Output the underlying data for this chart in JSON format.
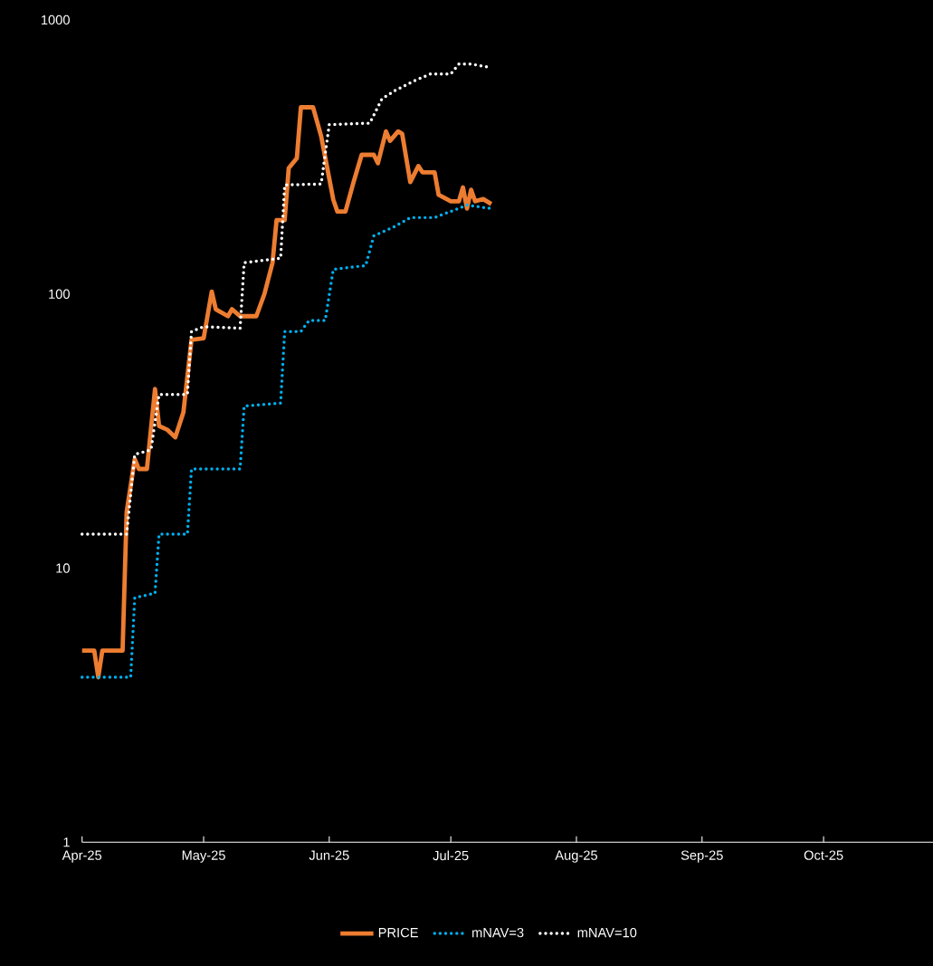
{
  "chart_data": {
    "type": "line",
    "log": "y",
    "legend": "bottom",
    "marker": "none",
    "xlim": [
      "2025-04-01",
      "2025-10-28"
    ],
    "ylim": [
      1,
      1000
    ],
    "yticks": [
      1,
      10,
      100,
      1000
    ],
    "xticks": [
      {
        "value": "2025-04-01",
        "label": "Apr-25"
      },
      {
        "value": "2025-05-01",
        "label": "May-25"
      },
      {
        "value": "2025-06-01",
        "label": "Jun-25"
      },
      {
        "value": "2025-07-01",
        "label": "Jul-25"
      },
      {
        "value": "2025-08-01",
        "label": "Aug-25"
      },
      {
        "value": "2025-09-01",
        "label": "Sep-25"
      },
      {
        "value": "2025-10-01",
        "label": "Oct-25"
      }
    ],
    "series": [
      {
        "name": "PRICE",
        "color": "#ed7d31",
        "line_style": "solid",
        "x": [
          "2025-04-01",
          "2025-04-04",
          "2025-04-05",
          "2025-04-06",
          "2025-04-11",
          "2025-04-12",
          "2025-04-14",
          "2025-04-15",
          "2025-04-17",
          "2025-04-19",
          "2025-04-20",
          "2025-04-22",
          "2025-04-24",
          "2025-04-26",
          "2025-04-28",
          "2025-05-01",
          "2025-05-03",
          "2025-05-04",
          "2025-05-07",
          "2025-05-08",
          "2025-05-10",
          "2025-05-14",
          "2025-05-16",
          "2025-05-18",
          "2025-05-19",
          "2025-05-21",
          "2025-05-22",
          "2025-05-24",
          "2025-05-25",
          "2025-05-28",
          "2025-05-30",
          "2025-06-02",
          "2025-06-03",
          "2025-06-05",
          "2025-06-07",
          "2025-06-09",
          "2025-06-12",
          "2025-06-13",
          "2025-06-15",
          "2025-06-16",
          "2025-06-18",
          "2025-06-19",
          "2025-06-21",
          "2025-06-23",
          "2025-06-24",
          "2025-06-27",
          "2025-06-28",
          "2025-07-01",
          "2025-07-03",
          "2025-07-04",
          "2025-07-05",
          "2025-07-06",
          "2025-07-07",
          "2025-07-09",
          "2025-07-11"
        ],
        "values": [
          5,
          5,
          4,
          5,
          5,
          16,
          25,
          23,
          23,
          45,
          33,
          32,
          30,
          37,
          68,
          69,
          102,
          88,
          83,
          88,
          83,
          83,
          100,
          130,
          186,
          186,
          288,
          313,
          480,
          480,
          377,
          221,
          200,
          200,
          256,
          322,
          322,
          300,
          392,
          362,
          392,
          384,
          256,
          293,
          278,
          278,
          230,
          218,
          218,
          245,
          205,
          240,
          218,
          222,
          213
        ]
      },
      {
        "name": "mNAV=3",
        "color": "#00b0f0",
        "line_style": "dotted",
        "x": [
          "2025-04-01",
          "2025-04-13",
          "2025-04-14",
          "2025-04-19",
          "2025-04-20",
          "2025-04-27",
          "2025-04-28",
          "2025-05-10",
          "2025-05-11",
          "2025-05-20",
          "2025-05-21",
          "2025-05-25",
          "2025-05-27",
          "2025-05-31",
          "2025-06-02",
          "2025-06-10",
          "2025-06-12",
          "2025-06-17",
          "2025-06-21",
          "2025-06-27",
          "2025-07-05",
          "2025-07-11"
        ],
        "values": [
          4,
          4,
          7.8,
          8.1,
          13.3,
          13.3,
          23,
          23,
          39,
          40,
          73,
          73,
          80,
          80,
          123,
          127,
          163,
          176,
          190,
          190,
          211,
          205
        ]
      },
      {
        "name": "mNAV=10",
        "color": "#ffffff",
        "line_style": "dotted",
        "x": [
          "2025-04-01",
          "2025-04-12",
          "2025-04-14",
          "2025-04-18",
          "2025-04-20",
          "2025-04-27",
          "2025-04-28",
          "2025-05-01",
          "2025-05-10",
          "2025-05-11",
          "2025-05-20",
          "2025-05-21",
          "2025-05-30",
          "2025-06-01",
          "2025-06-11",
          "2025-06-14",
          "2025-06-17",
          "2025-06-22",
          "2025-06-26",
          "2025-07-01",
          "2025-07-03",
          "2025-07-06",
          "2025-07-11"
        ],
        "values": [
          13.3,
          13.3,
          26,
          27,
          43,
          43,
          73,
          76,
          75,
          130,
          135,
          250,
          252,
          415,
          420,
          515,
          550,
          600,
          635,
          635,
          690,
          690,
          670
        ]
      }
    ]
  }
}
